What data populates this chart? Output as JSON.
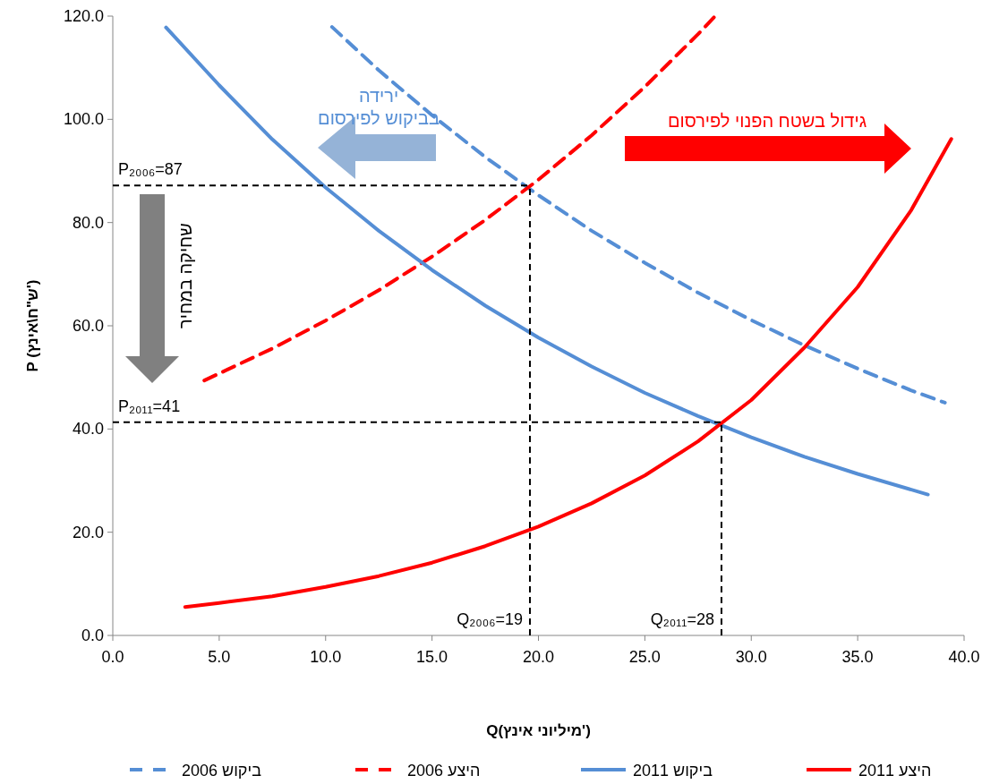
{
  "chart_data": {
    "type": "line",
    "xlabel": "Q(מיליוני אינץ')",
    "ylabel": "P (ש\"ח\\אינץ')",
    "xlim": [
      0,
      40
    ],
    "ylim": [
      0,
      120
    ],
    "xticks": [
      {
        "value": 0,
        "label": "0.0"
      },
      {
        "value": 5,
        "label": "5.0"
      },
      {
        "value": 10,
        "label": "10.0"
      },
      {
        "value": 15,
        "label": "15.0"
      },
      {
        "value": 20,
        "label": "20.0"
      },
      {
        "value": 25,
        "label": "25.0"
      },
      {
        "value": 30,
        "label": "30.0"
      },
      {
        "value": 35,
        "label": "35.0"
      },
      {
        "value": 40,
        "label": "40.0"
      }
    ],
    "yticks": [
      {
        "value": 0,
        "label": "0.0"
      },
      {
        "value": 20,
        "label": "20.0"
      },
      {
        "value": 40,
        "label": "40.0"
      },
      {
        "value": 60,
        "label": "60.0"
      },
      {
        "value": 80,
        "label": "80.0"
      },
      {
        "value": 100,
        "label": "100.0"
      },
      {
        "value": 120,
        "label": "120.0"
      }
    ],
    "grid": false,
    "legend": "bottom",
    "series": [
      {
        "name": "ביקוש 2006",
        "color": "#558ed5",
        "line_style": "dashed",
        "x": [
          10.3,
          12.5,
          15,
          17.5,
          20,
          22.5,
          25,
          27.5,
          30,
          32.5,
          35,
          37.5,
          39.1
        ],
        "values": [
          117.9,
          109.5,
          100.8,
          92.7,
          85.3,
          78.4,
          72.2,
          66.4,
          61.1,
          56.2,
          51.7,
          47.5,
          45.1
        ]
      },
      {
        "name": "היצע 2006",
        "color": "#ff0000",
        "line_style": "dashed",
        "x": [
          4.3,
          7.5,
          10,
          12.5,
          15,
          17.5,
          20,
          22.5,
          25,
          27.5,
          28.3
        ],
        "values": [
          49.4,
          55.6,
          61.0,
          66.9,
          73.4,
          80.5,
          88.3,
          96.9,
          106.3,
          116.5,
          120.0
        ]
      },
      {
        "name": "ביקוש 2011",
        "color": "#558ed5",
        "line_style": "solid",
        "x": [
          2.5,
          5,
          7.5,
          10,
          12.5,
          15,
          17.5,
          20,
          22.5,
          25,
          27.5,
          30,
          32.5,
          35,
          38.3
        ],
        "values": [
          117.8,
          106.6,
          96.1,
          86.8,
          78.4,
          70.8,
          63.9,
          57.7,
          52.1,
          47.0,
          42.5,
          38.4,
          34.6,
          31.3,
          27.3
        ]
      },
      {
        "name": "היצע 2011",
        "color": "#ff0000",
        "line_style": "solid",
        "x": [
          3.4,
          5,
          7.5,
          10,
          12.5,
          15,
          17.5,
          20,
          22.5,
          25,
          27.5,
          30,
          32.5,
          35,
          37.5,
          39.4
        ],
        "values": [
          5.5,
          6.3,
          7.6,
          9.4,
          11.5,
          14.1,
          17.3,
          21.1,
          25.6,
          31.0,
          37.6,
          45.6,
          55.8,
          67.5,
          82.3,
          96.2
        ]
      },
      {
        "color": "#000000",
        "line_style": "dashed",
        "x": [
          0,
          19.6
        ],
        "values": [
          87.2,
          87.2
        ]
      },
      {
        "color": "#000000",
        "line_style": "dashed",
        "x": [
          19.6,
          19.6
        ],
        "values": [
          0,
          87.2
        ]
      },
      {
        "color": "#000000",
        "line_style": "dashed",
        "x": [
          0,
          28.6
        ],
        "values": [
          41.3,
          41.3
        ]
      },
      {
        "color": "#000000",
        "line_style": "dashed",
        "x": [
          28.6,
          28.6
        ],
        "values": [
          0,
          41.3
        ]
      }
    ],
    "annotations": [
      {
        "text": "P₂₀₀₆=87",
        "x": 0,
        "y": 87.2
      },
      {
        "text": "P₂₀₁₁=41",
        "x": 0,
        "y": 41.3
      },
      {
        "text": "Q₂₀₀₆=19",
        "x": 19.6,
        "y": 0
      },
      {
        "text": "Q₂₀₁₁=28",
        "x": 28.6,
        "y": 0
      },
      "ירידה\nבביקוש לפירסום",
      "גידול בשטח הפנוי לפירסום",
      "שחיקה במחיר"
    ]
  }
}
